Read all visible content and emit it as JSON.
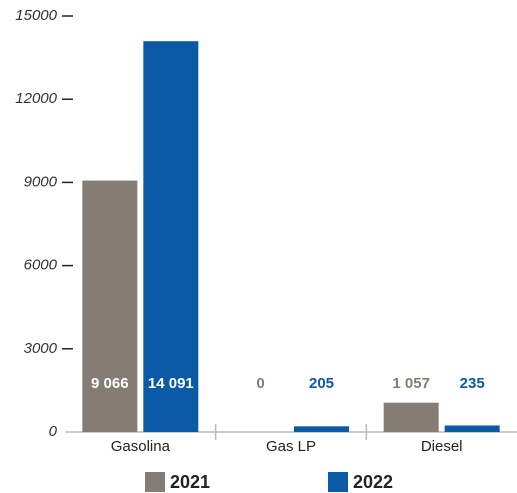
{
  "chart_data": {
    "type": "bar",
    "categories": [
      "Gasolina",
      "Gas LP",
      "Diesel"
    ],
    "series": [
      {
        "name": "2021",
        "color": "#857c73",
        "values": [
          9066,
          0,
          1057
        ],
        "value_labels": [
          "9 066",
          "0",
          "1 057"
        ]
      },
      {
        "name": "2022",
        "color": "#0a5aa8",
        "values": [
          14091,
          205,
          235
        ],
        "value_labels": [
          "14 091",
          "205",
          "235"
        ]
      }
    ],
    "ylim": [
      0,
      15000
    ],
    "yticks": [
      0,
      3000,
      6000,
      9000,
      12000,
      15000
    ],
    "legend": "bottom"
  }
}
